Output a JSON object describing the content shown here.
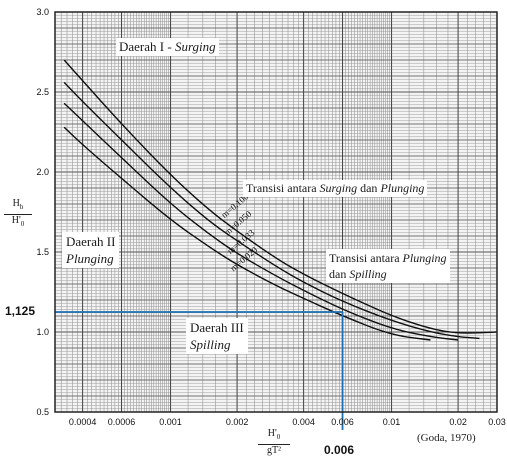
{
  "chart_data": {
    "type": "line",
    "x_scale": "log",
    "xlim": [
      0.0003,
      0.03
    ],
    "ylim": [
      0.5,
      3.0
    ],
    "xlabel": "H'0 / gT²",
    "ylabel": "Hb / H'0",
    "xticks": [
      "0.0004",
      "0.0006",
      "0.001",
      "0.002",
      "0.004",
      "0.006",
      "0.01",
      "0.02",
      "0.03"
    ],
    "xtick_values": [
      0.0004,
      0.0006,
      0.001,
      0.002,
      0.004,
      0.006,
      0.01,
      0.02,
      0.03
    ],
    "yticks": [
      "0.5",
      "1.0",
      "1.5",
      "2.0",
      "2.5",
      "3.0"
    ],
    "ytick_values": [
      0.5,
      1.0,
      1.5,
      2.0,
      2.5,
      3.0
    ],
    "grid": true,
    "series": [
      {
        "name": "m=0.100",
        "x": [
          0.00033,
          0.0004,
          0.0006,
          0.001,
          0.0015,
          0.002,
          0.003,
          0.004,
          0.006,
          0.01,
          0.015,
          0.02,
          0.03
        ],
        "y": [
          2.7,
          2.57,
          2.3,
          1.98,
          1.76,
          1.63,
          1.46,
          1.36,
          1.24,
          1.1,
          1.02,
          0.99,
          1.0
        ]
      },
      {
        "name": "m=0.050",
        "x": [
          0.00033,
          0.0004,
          0.0006,
          0.001,
          0.0015,
          0.002,
          0.003,
          0.004,
          0.006,
          0.01,
          0.015,
          0.02,
          0.025
        ],
        "y": [
          2.56,
          2.44,
          2.2,
          1.9,
          1.69,
          1.57,
          1.41,
          1.31,
          1.19,
          1.07,
          1.0,
          0.97,
          0.96
        ]
      },
      {
        "name": "m=0.033",
        "x": [
          0.00033,
          0.0004,
          0.0006,
          0.001,
          0.0015,
          0.002,
          0.003,
          0.004,
          0.006,
          0.01,
          0.015,
          0.02
        ],
        "y": [
          2.43,
          2.32,
          2.09,
          1.8,
          1.61,
          1.49,
          1.35,
          1.26,
          1.14,
          1.02,
          0.97,
          0.95
        ]
      },
      {
        "name": "m=0.020",
        "x": [
          0.00033,
          0.0004,
          0.0006,
          0.001,
          0.0015,
          0.002,
          0.003,
          0.004,
          0.006,
          0.01,
          0.015
        ],
        "y": [
          2.28,
          2.17,
          1.96,
          1.7,
          1.53,
          1.42,
          1.29,
          1.21,
          1.1,
          0.98,
          0.95
        ]
      }
    ],
    "curve_labels": [
      "m=0.100",
      "m=0.050",
      "m=0.033",
      "m=0.020"
    ],
    "annotations": {
      "region1_prefix": "Daerah I -",
      "region1_name": "Surging",
      "transition1_a": "Transisi antara",
      "transition1_b": "Surging",
      "transition1_c": "dan",
      "transition1_d": "Plunging",
      "region2": "Daerah II",
      "region2_name": "Plunging",
      "transition2_a": "Transisi antara",
      "transition2_b": "Plunging",
      "transition2_c": "dan",
      "transition2_d": "Spilling",
      "region3": "Daerah III",
      "region3_name": "Spilling",
      "source": "(Goda, 1970)"
    },
    "highlight": {
      "x": 0.006,
      "y": 1.125,
      "x_label": "0.006",
      "y_label": "1,125",
      "color": "#1f6fb5"
    }
  }
}
